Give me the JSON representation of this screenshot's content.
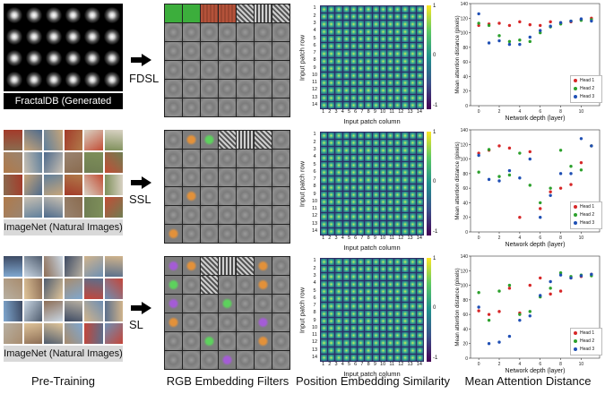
{
  "pretraining": [
    {
      "caption": "FractalDB (Generated Images)"
    },
    {
      "caption": "ImageNet (Natural Images)"
    },
    {
      "caption": "ImageNet (Natural Images)"
    }
  ],
  "methods": [
    "FDSL",
    "SSL",
    "SL"
  ],
  "bottom_titles": {
    "pretraining": "Pre-Training",
    "rgb": "RGB Embedding Filters",
    "position": "Position Embedding Similarity",
    "attention": "Mean Attention Distance"
  },
  "similarity": {
    "ylabel": "Input patch row",
    "xlabel": "Input patch column",
    "ticks": [
      "1",
      "2",
      "3",
      "4",
      "5",
      "6",
      "7",
      "8",
      "9",
      "10",
      "11",
      "12",
      "13",
      "14"
    ],
    "colorbar_ticks": [
      "1",
      "0",
      "-1"
    ],
    "colormap": [
      "#440154",
      "#3b528b",
      "#21918c",
      "#5ec962",
      "#fde725"
    ]
  },
  "colors": {
    "head1": "#d62728",
    "head2": "#2ca02c",
    "head3": "#1f4fb4"
  },
  "chart_data": [
    {
      "type": "scatter",
      "xlabel": "Network depth (layer)",
      "ylabel": "Mean attention distance (pixels)",
      "xlim": [
        -0.8,
        11.8
      ],
      "ylim": [
        0,
        140
      ],
      "xticks": [
        0,
        2,
        4,
        6,
        8,
        10
      ],
      "yticks": [
        0,
        20,
        40,
        60,
        80,
        100,
        120,
        140
      ],
      "legend_position": "bottom-right",
      "series": [
        {
          "name": "Head 1",
          "x": [
            0,
            1,
            2,
            3,
            4,
            5,
            6,
            7,
            8,
            9,
            10,
            11
          ],
          "y": [
            110,
            112,
            113,
            110,
            115,
            111,
            110,
            115,
            113,
            115,
            118,
            120
          ]
        },
        {
          "name": "Head 2",
          "x": [
            0,
            1,
            2,
            3,
            4,
            5,
            6,
            7,
            8,
            9,
            10,
            11
          ],
          "y": [
            113,
            110,
            96,
            88,
            90,
            88,
            100,
            108,
            112,
            116,
            117,
            118
          ]
        },
        {
          "name": "Head 3",
          "x": [
            0,
            1,
            2,
            3,
            4,
            5,
            6,
            7,
            8,
            9,
            10,
            11
          ],
          "y": [
            126,
            86,
            89,
            84,
            84,
            94,
            103,
            109,
            114,
            116,
            119,
            116
          ]
        }
      ]
    },
    {
      "type": "scatter",
      "xlabel": "Network depth (layer)",
      "ylabel": "Mean attention distance (pixels)",
      "xlim": [
        -0.8,
        11.8
      ],
      "ylim": [
        0,
        140
      ],
      "xticks": [
        0,
        2,
        4,
        6,
        8,
        10
      ],
      "yticks": [
        0,
        20,
        40,
        60,
        80,
        100,
        120,
        140
      ],
      "legend_position": "bottom-right",
      "series": [
        {
          "name": "Head 1",
          "x": [
            0,
            1,
            2,
            3,
            4,
            5,
            6,
            7,
            8,
            9,
            10,
            11
          ],
          "y": [
            108,
            112,
            118,
            115,
            20,
            110,
            32,
            55,
            60,
            65,
            95,
            118
          ]
        },
        {
          "name": "Head 2",
          "x": [
            0,
            1,
            2,
            3,
            4,
            5,
            6,
            7,
            8,
            9,
            10,
            11
          ],
          "y": [
            82,
            113,
            76,
            78,
            108,
            64,
            40,
            60,
            112,
            90,
            85,
            118
          ]
        },
        {
          "name": "Head 3",
          "x": [
            0,
            1,
            2,
            3,
            4,
            5,
            6,
            7,
            8,
            9,
            10,
            11
          ],
          "y": [
            105,
            72,
            70,
            84,
            74,
            100,
            20,
            50,
            80,
            80,
            128,
            118
          ]
        }
      ]
    },
    {
      "type": "scatter",
      "xlabel": "Network depth (layer)",
      "ylabel": "Mean attention distance (pixels)",
      "xlim": [
        -0.8,
        11.8
      ],
      "ylim": [
        0,
        140
      ],
      "xticks": [
        0,
        2,
        4,
        6,
        8,
        10
      ],
      "yticks": [
        0,
        20,
        40,
        60,
        80,
        100,
        120,
        140
      ],
      "legend_position": "bottom-right",
      "series": [
        {
          "name": "Head 1",
          "x": [
            0,
            1,
            2,
            3,
            4,
            5,
            6,
            7,
            8,
            9,
            10,
            11
          ],
          "y": [
            65,
            60,
            64,
            96,
            62,
            100,
            110,
            88,
            92,
            110,
            112,
            115
          ]
        },
        {
          "name": "Head 2",
          "x": [
            0,
            1,
            2,
            3,
            4,
            5,
            6,
            7,
            8,
            9,
            10,
            11
          ],
          "y": [
            90,
            52,
            92,
            100,
            60,
            64,
            84,
            96,
            117,
            112,
            114,
            113
          ]
        },
        {
          "name": "Head 3",
          "x": [
            0,
            1,
            2,
            3,
            4,
            5,
            6,
            7,
            8,
            9,
            10,
            11
          ],
          "y": [
            70,
            20,
            22,
            30,
            52,
            58,
            86,
            105,
            114,
            110,
            113,
            115
          ]
        }
      ]
    }
  ]
}
